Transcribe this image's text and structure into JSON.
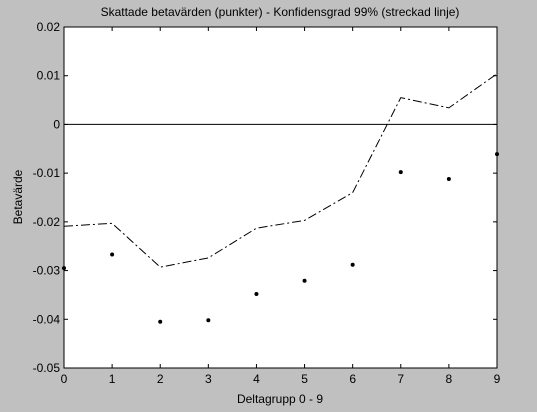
{
  "chart_data": {
    "type": "scatter",
    "title": "Skattade betavärden (punkter) - Konfidensgrad 99% (streckad linje)",
    "xlabel": "Deltagrupp 0 - 9",
    "ylabel": "Betavärde",
    "xlim": [
      0,
      9
    ],
    "ylim": [
      -0.05,
      0.02
    ],
    "x_ticks": [
      0,
      1,
      2,
      3,
      4,
      5,
      6,
      7,
      8,
      9
    ],
    "x_tick_labels": [
      "0",
      "1",
      "2",
      "3",
      "4",
      "5",
      "6",
      "7",
      "8",
      "9"
    ],
    "y_ticks": [
      0.02,
      0.01,
      0,
      -0.01,
      -0.02,
      -0.03,
      -0.04,
      -0.05
    ],
    "y_tick_labels": [
      "0.02",
      "0.01",
      "0",
      "-0.01",
      "-0.02",
      "-0.03",
      "-0.04",
      "-0.05"
    ],
    "grid": false,
    "reference_line": {
      "y": 0,
      "style": "solid",
      "color": "#000000"
    },
    "series": [
      {
        "style": "points",
        "x": [
          0,
          1,
          2,
          3,
          4,
          5,
          6,
          7,
          8,
          9
        ],
        "y": [
          -0.0295,
          -0.0267,
          -0.0405,
          -0.0402,
          -0.0348,
          -0.0321,
          -0.0288,
          -0.0098,
          -0.0112,
          -0.0061
        ],
        "color": "#000000"
      },
      {
        "style": "dashdot-line",
        "x": [
          0,
          1,
          2,
          3,
          4,
          5,
          6,
          7,
          8,
          9
        ],
        "y": [
          -0.0209,
          -0.0203,
          -0.0293,
          -0.0274,
          -0.0213,
          -0.0197,
          -0.014,
          0.0055,
          0.0034,
          0.0104
        ],
        "color": "#000000"
      }
    ]
  },
  "colors": {
    "figure_background": "#c0c0c0",
    "axes_background": "#ffffff",
    "ink": "#000000"
  }
}
